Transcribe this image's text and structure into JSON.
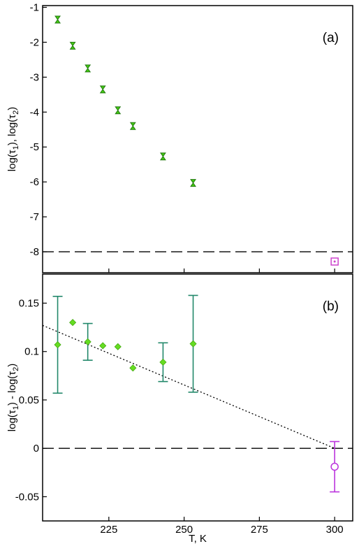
{
  "chart_data": [
    {
      "type": "scatter",
      "panel_label": "(a)",
      "ylabel_parts": [
        "log(τ",
        "1",
        "), log(τ",
        "2",
        ")"
      ],
      "xlim": [
        203,
        306
      ],
      "ylim": [
        -8.6,
        -0.95
      ],
      "yticks": [
        -1,
        -2,
        -3,
        -4,
        -5,
        -6,
        -7,
        -8
      ],
      "xticks": [
        225,
        250,
        275,
        300
      ],
      "reference_line": -8,
      "series": [
        {
          "marker": "hourglass",
          "color": "#44cc11",
          "points": [
            {
              "x": 208,
              "y": -1.35
            },
            {
              "x": 213,
              "y": -2.1
            },
            {
              "x": 218,
              "y": -2.75
            },
            {
              "x": 223,
              "y": -3.35
            },
            {
              "x": 228,
              "y": -3.95
            },
            {
              "x": 233,
              "y": -4.4
            },
            {
              "x": 243,
              "y": -5.27
            },
            {
              "x": 253,
              "y": -6.03
            }
          ]
        },
        {
          "marker": "square-dot",
          "color": "#cc44cc",
          "points": [
            {
              "x": 300,
              "y": -8.28
            }
          ]
        }
      ]
    },
    {
      "type": "scatter",
      "panel_label": "(b)",
      "ylabel_parts": [
        "log(τ",
        "1",
        ") - log(τ",
        "2",
        ")"
      ],
      "xlabel": "T, K",
      "xlim": [
        203,
        306
      ],
      "ylim": [
        -0.075,
        0.18
      ],
      "yticks": [
        0.15,
        0.1,
        0.05,
        0,
        -0.05
      ],
      "ytick_labels": [
        "0.15",
        "0.1",
        "0.05",
        "0",
        "-0.05"
      ],
      "xticks": [
        225,
        250,
        275,
        300
      ],
      "xtick_labels": [
        "225",
        "250",
        "275",
        "300"
      ],
      "reference_line": 0,
      "trend_line": [
        [
          203,
          0.127
        ],
        [
          300,
          0
        ]
      ],
      "series": [
        {
          "marker": "diamond",
          "color": "#66dd22",
          "errorbar_color": "#22886a",
          "points": [
            {
              "x": 208,
              "y": 0.107,
              "err": 0.05
            },
            {
              "x": 213,
              "y": 0.13
            },
            {
              "x": 218,
              "y": 0.11,
              "err": 0.019
            },
            {
              "x": 223,
              "y": 0.106
            },
            {
              "x": 228,
              "y": 0.105
            },
            {
              "x": 233,
              "y": 0.083
            },
            {
              "x": 243,
              "y": 0.089,
              "err": 0.02
            },
            {
              "x": 253,
              "y": 0.108,
              "err": 0.05
            }
          ]
        },
        {
          "marker": "open-circle",
          "color": "#bb33dd",
          "errorbar_color": "#bb33dd",
          "points": [
            {
              "x": 300,
              "y": -0.019,
              "err": 0.026
            }
          ]
        }
      ]
    }
  ]
}
